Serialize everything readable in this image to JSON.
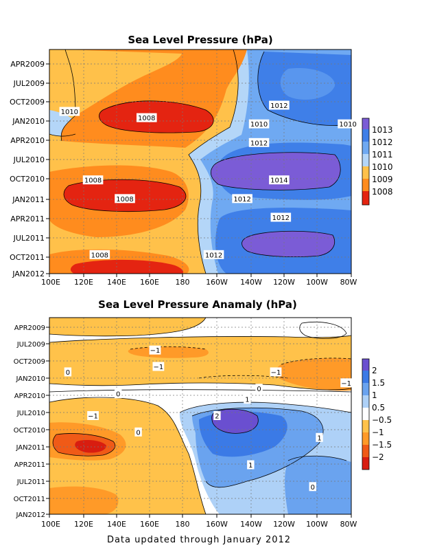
{
  "footer": "Data updated through January 2012",
  "chart_data": [
    {
      "type": "heatmap",
      "title": "Sea Level Pressure (hPa)",
      "x_ticks": [
        "100E",
        "120E",
        "140E",
        "160E",
        "180",
        "160W",
        "140W",
        "120W",
        "100W",
        "80W"
      ],
      "x_range_deg_east": [
        100,
        280
      ],
      "y_ticks": [
        "APR2009",
        "JUL2009",
        "OCT2009",
        "JAN2010",
        "APR2010",
        "JUL2010",
        "OCT2010",
        "JAN2011",
        "APR2011",
        "JUL2011",
        "OCT2011",
        "JAN2012"
      ],
      "time_range": [
        "2009-01",
        "2012-01"
      ],
      "colorbar": {
        "labels": [
          "1013",
          "1012",
          "1011",
          "1010",
          "1009",
          "1008"
        ],
        "colors": [
          "#7b5cd6",
          "#3f7fe8",
          "#6fa9f2",
          "#b4d6f8",
          "#ffc14a",
          "#ff8c1e",
          "#e42411"
        ]
      },
      "contour_labels": [
        {
          "text": "1010",
          "lon": 112,
          "time": "2009-11"
        },
        {
          "text": "1008",
          "lon": 158,
          "time": "2009-12"
        },
        {
          "text": "1012",
          "lon": 237,
          "time": "2009-10"
        },
        {
          "text": "1010",
          "lon": 225,
          "time": "2010-01"
        },
        {
          "text": "1010",
          "lon": 278,
          "time": "2010-01"
        },
        {
          "text": "1012",
          "lon": 225,
          "time": "2010-04"
        },
        {
          "text": "1014",
          "lon": 237,
          "time": "2010-10"
        },
        {
          "text": "1008",
          "lon": 126,
          "time": "2010-10"
        },
        {
          "text": "1008",
          "lon": 145,
          "time": "2011-01"
        },
        {
          "text": "1012",
          "lon": 215,
          "time": "2011-01"
        },
        {
          "text": "1012",
          "lon": 238,
          "time": "2011-04"
        },
        {
          "text": "1008",
          "lon": 130,
          "time": "2011-10"
        },
        {
          "text": "1012",
          "lon": 198,
          "time": "2011-10"
        }
      ]
    },
    {
      "type": "heatmap",
      "title": "Sea Level Pressure Anamaly (hPa)",
      "x_ticks": [
        "100E",
        "120E",
        "140E",
        "160E",
        "180",
        "160W",
        "140W",
        "120W",
        "100W",
        "80W"
      ],
      "x_range_deg_east": [
        100,
        280
      ],
      "y_ticks": [
        "APR2009",
        "JUL2009",
        "OCT2009",
        "JAN2010",
        "APR2010",
        "JUL2010",
        "OCT2010",
        "JAN2011",
        "APR2011",
        "JUL2011",
        "OCT2011",
        "JAN2012"
      ],
      "time_range": [
        "2009-01",
        "2012-01"
      ],
      "colorbar": {
        "labels": [
          "2",
          "1.5",
          "1",
          "0.5",
          "−0.5",
          "−1",
          "−1.5",
          "−2"
        ],
        "colors": [
          "#6a4fd0",
          "#3b7ae6",
          "#6aa3ef",
          "#aed1f7",
          "#ffffff",
          "#ffc24a",
          "#ff9a28",
          "#f05a17",
          "#d81d10"
        ]
      },
      "contour_labels": [
        {
          "text": "−1",
          "lon": 163,
          "time": "2009-07"
        },
        {
          "text": "−1",
          "lon": 165,
          "time": "2009-10"
        },
        {
          "text": "−1",
          "lon": 235,
          "time": "2009-11"
        },
        {
          "text": "0",
          "lon": 111,
          "time": "2009-11"
        },
        {
          "text": "−1",
          "lon": 277,
          "time": "2010-01"
        },
        {
          "text": "0",
          "lon": 141,
          "time": "2010-03"
        },
        {
          "text": "0",
          "lon": 225,
          "time": "2010-02"
        },
        {
          "text": "1",
          "lon": 218,
          "time": "2010-04"
        },
        {
          "text": "−1",
          "lon": 126,
          "time": "2010-07"
        },
        {
          "text": "2",
          "lon": 200,
          "time": "2010-07"
        },
        {
          "text": "0",
          "lon": 153,
          "time": "2010-10"
        },
        {
          "text": "1",
          "lon": 261,
          "time": "2010-11"
        },
        {
          "text": "1",
          "lon": 220,
          "time": "2011-04"
        },
        {
          "text": "0",
          "lon": 257,
          "time": "2011-08"
        }
      ]
    }
  ]
}
